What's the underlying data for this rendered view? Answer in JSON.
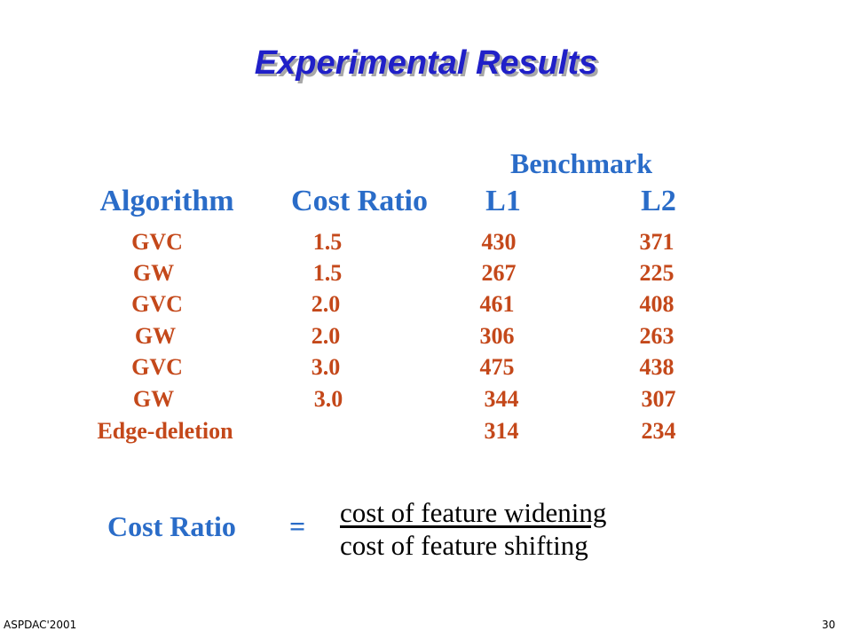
{
  "title": "Experimental Results",
  "table": {
    "group_header": "Benchmark",
    "headers": [
      "Algorithm",
      "Cost Ratio",
      "L1",
      "L2"
    ],
    "rows": [
      [
        "GVC",
        "1.5",
        "430",
        "371"
      ],
      [
        "GW",
        "1.5",
        "267",
        "225"
      ],
      [
        "GVC",
        "2.0",
        "461",
        "408"
      ],
      [
        "GW",
        "2.0",
        "306",
        "263"
      ],
      [
        "GVC",
        "3.0",
        "475",
        "438"
      ],
      [
        "GW",
        "3.0",
        "344",
        "307"
      ],
      [
        "Edge-deletion",
        "",
        "314",
        "234"
      ]
    ]
  },
  "formula": {
    "label": "Cost Ratio",
    "equals": "=",
    "numerator": "cost of feature widening",
    "denominator": "cost of feature shifting"
  },
  "footer": {
    "left": "ASPDAC'2001",
    "page": "30"
  },
  "colors": {
    "title": "#2020c8",
    "header": "#2a6cc8",
    "data": "#c4481a"
  }
}
